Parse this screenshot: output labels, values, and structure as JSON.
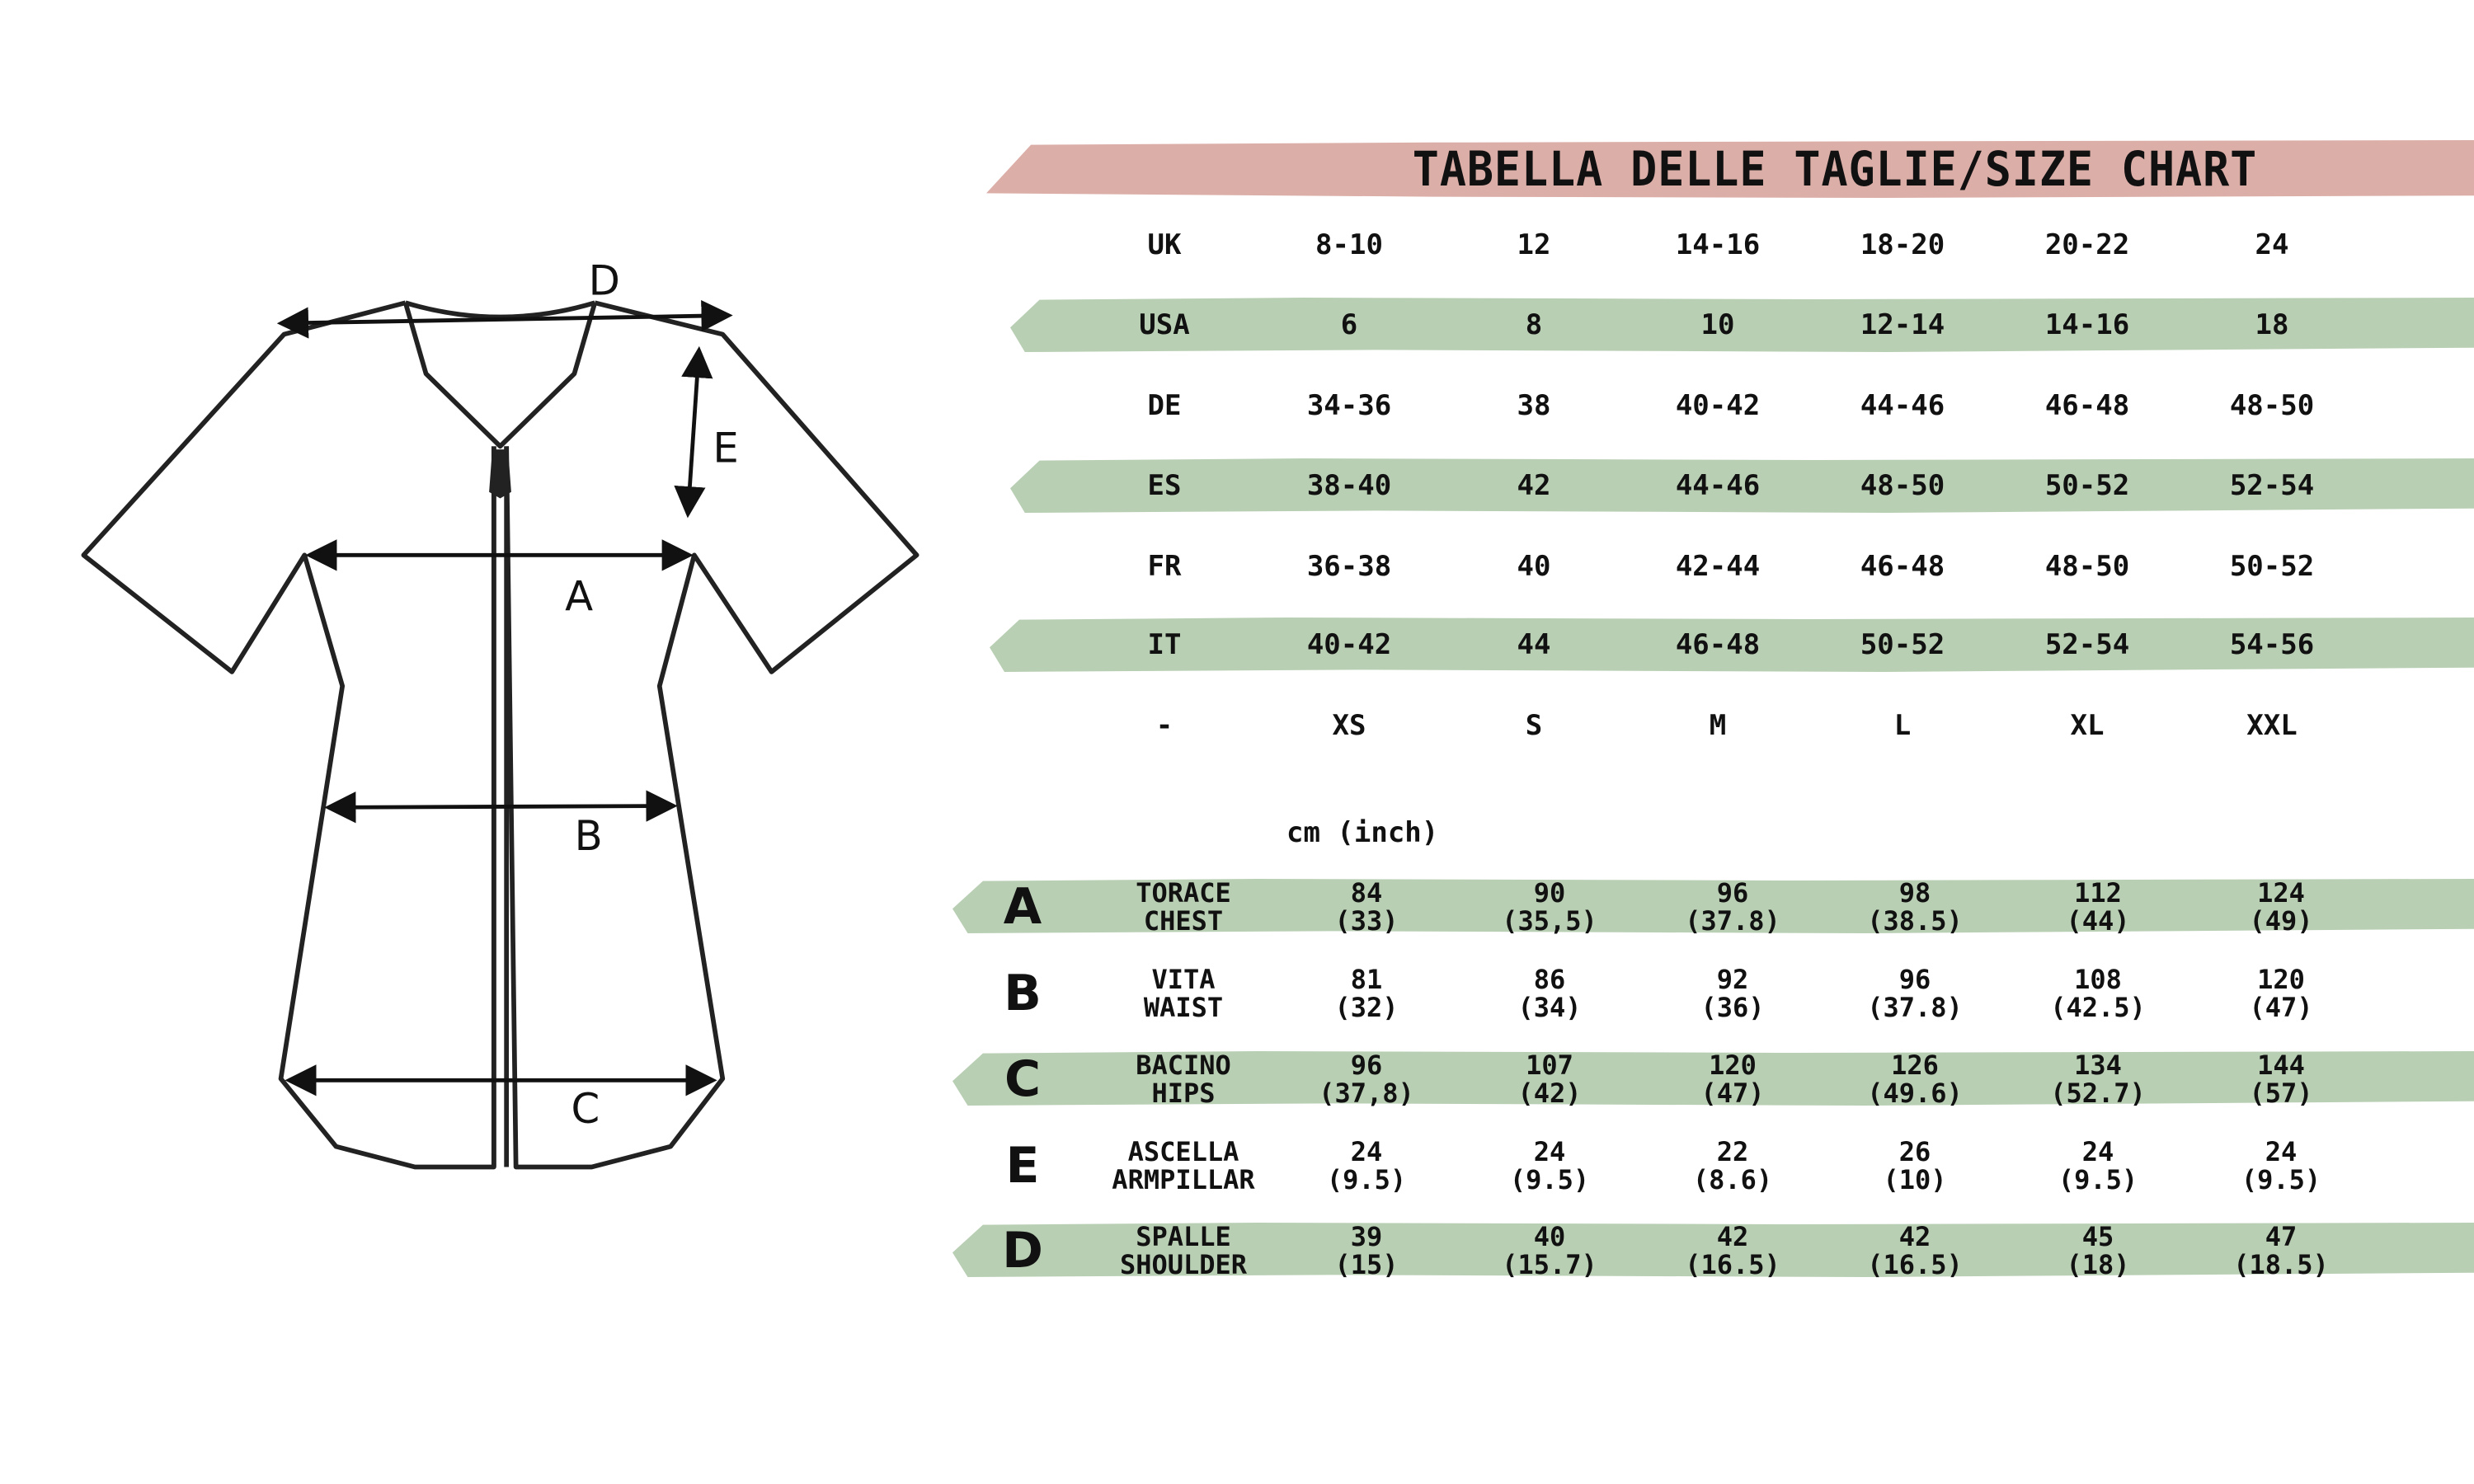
{
  "title": "TABELLA DELLE TAGLIE/SIZE CHART",
  "diagram_labels": {
    "A": "A",
    "B": "B",
    "C": "C",
    "D": "D",
    "E": "E"
  },
  "colors": {
    "header_band": "#dcaea8",
    "row_band": "#b9cfb4",
    "ink": "#111111"
  },
  "conversion_rows": [
    {
      "label": "UK",
      "values": [
        "8-10",
        "12",
        "14-16",
        "18-20",
        "20-22",
        "24"
      ],
      "highlight": false
    },
    {
      "label": "USA",
      "values": [
        "6",
        "8",
        "10",
        "12-14",
        "14-16",
        "18"
      ],
      "highlight": true
    },
    {
      "label": "DE",
      "values": [
        "34-36",
        "38",
        "40-42",
        "44-46",
        "46-48",
        "48-50"
      ],
      "highlight": false
    },
    {
      "label": "ES",
      "values": [
        "38-40",
        "42",
        "44-46",
        "48-50",
        "50-52",
        "52-54"
      ],
      "highlight": true
    },
    {
      "label": "FR",
      "values": [
        "36-38",
        "40",
        "42-44",
        "46-48",
        "48-50",
        "50-52"
      ],
      "highlight": false
    },
    {
      "label": "IT",
      "values": [
        "40-42",
        "44",
        "46-48",
        "50-52",
        "52-54",
        "54-56"
      ],
      "highlight": true
    },
    {
      "label": "-",
      "values": [
        "XS",
        "S",
        "M",
        "L",
        "XL",
        "XXL"
      ],
      "highlight": false
    }
  ],
  "unit_label": "cm (inch)",
  "measurement_rows": [
    {
      "letter": "A",
      "label_it": "TORACE",
      "label_en": "CHEST",
      "cm": [
        "84",
        "90",
        "96",
        "98",
        "112",
        "124"
      ],
      "inch": [
        "(33)",
        "(35,5)",
        "(37.8)",
        "(38.5)",
        "(44)",
        "(49)"
      ],
      "highlight": true
    },
    {
      "letter": "B",
      "label_it": "VITA",
      "label_en": "WAIST",
      "cm": [
        "81",
        "86",
        "92",
        "96",
        "108",
        "120"
      ],
      "inch": [
        "(32)",
        "(34)",
        "(36)",
        "(37.8)",
        "(42.5)",
        "(47)"
      ],
      "highlight": false
    },
    {
      "letter": "C",
      "label_it": "BACINO",
      "label_en": "HIPS",
      "cm": [
        "96",
        "107",
        "120",
        "126",
        "134",
        "144"
      ],
      "inch": [
        "(37,8)",
        "(42)",
        "(47)",
        "(49.6)",
        "(52.7)",
        "(57)"
      ],
      "highlight": true
    },
    {
      "letter": "E",
      "label_it": "ASCELLA",
      "label_en": "ARMPILLAR",
      "cm": [
        "24",
        "24",
        "22",
        "26",
        "24",
        "24"
      ],
      "inch": [
        "(9.5)",
        "(9.5)",
        "(8.6)",
        "(10)",
        "(9.5)",
        "(9.5)"
      ],
      "highlight": false
    },
    {
      "letter": "D",
      "label_it": "SPALLE",
      "label_en": "SHOULDER",
      "cm": [
        "39",
        "40",
        "42",
        "42",
        "45",
        "47"
      ],
      "inch": [
        "(15)",
        "(15.7)",
        "(16.5)",
        "(16.5)",
        "(18)",
        "(18.5)"
      ],
      "highlight": true
    }
  ]
}
